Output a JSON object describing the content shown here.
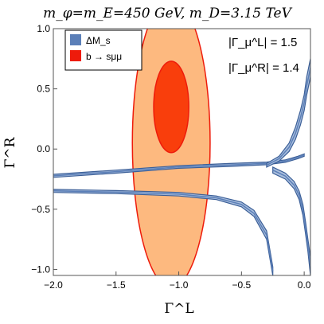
{
  "chart_data": {
    "type": "contour",
    "title": "m_φ=m_E=450 GeV, m_D=3.15 TeV",
    "xlabel": "Γ^L",
    "ylabel": "Γ^R",
    "xlim": [
      -2.0,
      0.05
    ],
    "ylim": [
      -1.05,
      1.0
    ],
    "xticks": [
      -2.0,
      -1.5,
      -1.0,
      -0.5,
      0.0
    ],
    "xtick_labels": [
      "−2.0",
      "−1.5",
      "−1.0",
      "−0.5",
      "0.0"
    ],
    "yticks": [
      -1.0,
      -0.5,
      0.0,
      0.5,
      1.0
    ],
    "ytick_labels": [
      "−1.0",
      "−0.5",
      "0.0",
      "0.5",
      "1.0"
    ],
    "legend": {
      "position": "top-left",
      "entries": [
        {
          "label": "ΔM_s",
          "color": "#5b7fb8"
        },
        {
          "label": "b → sμμ",
          "color": "#ee1b0b"
        }
      ]
    },
    "annotations": [
      {
        "text": "|Γ_μ^L| = 1.5"
      },
      {
        "text": "|Γ_μ^R| = 1.4"
      }
    ],
    "regions": {
      "bsmumu": {
        "center": [
          -1.06,
          0.05
        ],
        "outer_semi_axes": [
          0.31,
          1.2
        ],
        "inner_semi_axes": [
          0.14,
          0.38
        ],
        "inner_center": [
          -1.06,
          0.35
        ],
        "outer_color": "#fdb97f",
        "inner_color": "#f93e0c",
        "edge_color": "#ee1b0b"
      },
      "delta_ms": {
        "fill_color": "#a9bedd",
        "dark_color": "#5b7fb8",
        "edge_color": "#3b5f98",
        "bands": [
          {
            "id": "upper-band",
            "x": [
              -2.0,
              -1.5,
              -1.0,
              -0.6,
              -0.3,
              -0.15,
              -0.05,
              0.0
            ],
            "y_low": [
              -0.235,
              -0.2,
              -0.16,
              -0.145,
              -0.13,
              -0.11,
              -0.08,
              -0.06
            ],
            "y_high": [
              -0.21,
              -0.175,
              -0.138,
              -0.12,
              -0.108,
              -0.09,
              -0.06,
              -0.04
            ]
          },
          {
            "id": "lower-band",
            "x": [
              -2.0,
              -1.5,
              -1.0,
              -0.7,
              -0.5,
              -0.4,
              -0.3,
              -0.25
            ],
            "y_low": [
              -0.36,
              -0.37,
              -0.39,
              -0.42,
              -0.48,
              -0.56,
              -0.75,
              -1.05
            ],
            "y_high": [
              -0.335,
              -0.345,
              -0.36,
              -0.39,
              -0.44,
              -0.51,
              -0.68,
              -0.98
            ]
          },
          {
            "id": "right-upper",
            "x": [
              -0.3,
              -0.2,
              -0.12,
              -0.07,
              -0.03,
              0.0,
              0.02,
              0.05
            ],
            "y_low": [
              -0.15,
              -0.1,
              -0.02,
              0.08,
              0.2,
              0.32,
              0.45,
              0.6
            ],
            "y_high": [
              -0.12,
              -0.06,
              0.05,
              0.18,
              0.32,
              0.45,
              0.6,
              0.75
            ]
          },
          {
            "id": "right-lower",
            "x": [
              -0.25,
              -0.15,
              -0.08,
              -0.04,
              -0.01,
              0.01,
              0.03,
              0.05
            ],
            "y_low": [
              -0.2,
              -0.25,
              -0.33,
              -0.42,
              -0.55,
              -0.7,
              -0.85,
              -1.05
            ],
            "y_high": [
              -0.15,
              -0.2,
              -0.27,
              -0.35,
              -0.46,
              -0.6,
              -0.75,
              -0.9
            ]
          }
        ]
      }
    }
  }
}
